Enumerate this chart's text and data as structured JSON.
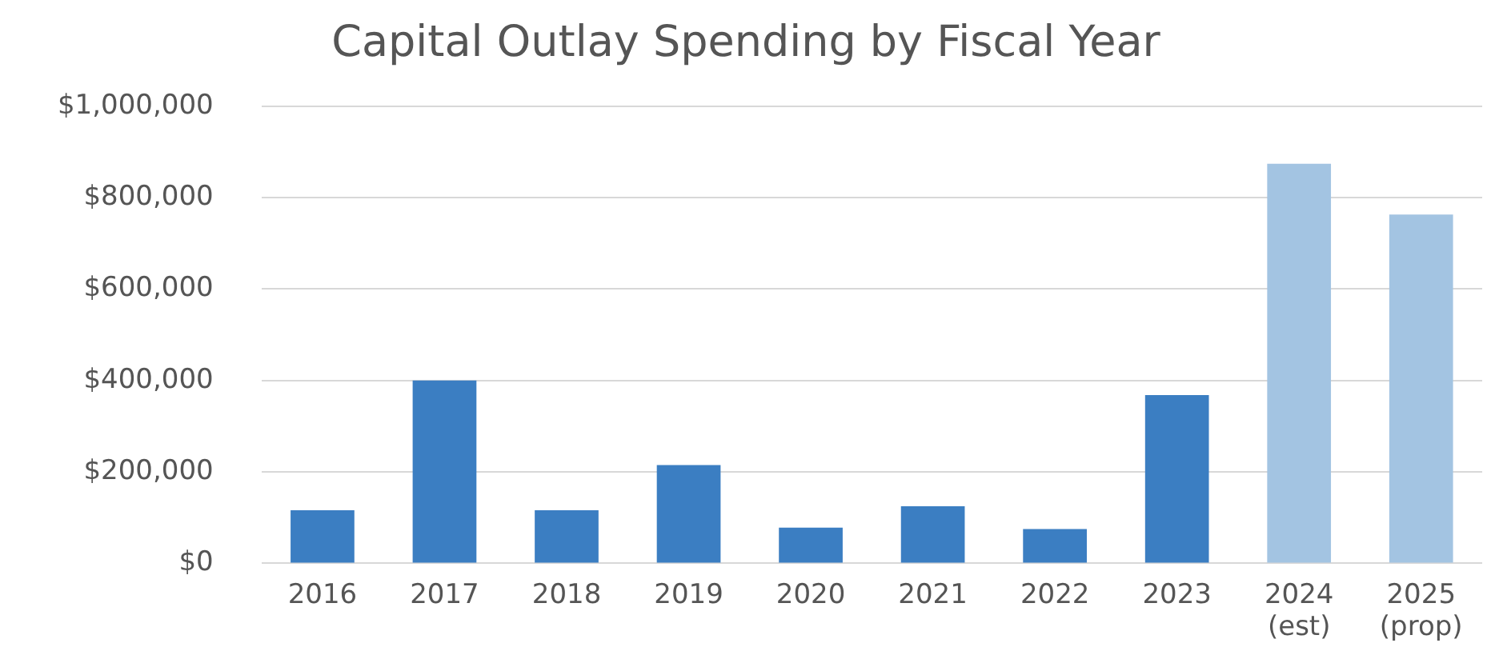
{
  "chart_data": {
    "type": "bar",
    "title": "Capital Outlay Spending by Fiscal Year",
    "categories": [
      "2016",
      "2017",
      "2018",
      "2019",
      "2020",
      "2021",
      "2022",
      "2023",
      "2024\n(est)",
      "2025\n(prop)"
    ],
    "values": [
      116000,
      400000,
      116000,
      215000,
      78000,
      125000,
      75000,
      368000,
      874000,
      763000
    ],
    "colors": [
      "#3b7ec2",
      "#3b7ec2",
      "#3b7ec2",
      "#3b7ec2",
      "#3b7ec2",
      "#3b7ec2",
      "#3b7ec2",
      "#3b7ec2",
      "#a3c4e2",
      "#a3c4e2"
    ],
    "ylim": [
      0,
      1000000
    ],
    "yticks": [
      {
        "value": 0,
        "label": "$0"
      },
      {
        "value": 200000,
        "label": "$200,000"
      },
      {
        "value": 400000,
        "label": "$400,000"
      },
      {
        "value": 600000,
        "label": "$600,000"
      },
      {
        "value": 800000,
        "label": "$800,000"
      },
      {
        "value": 1000000,
        "label": "$1,000,000"
      }
    ],
    "grid": "y",
    "legend": false
  }
}
